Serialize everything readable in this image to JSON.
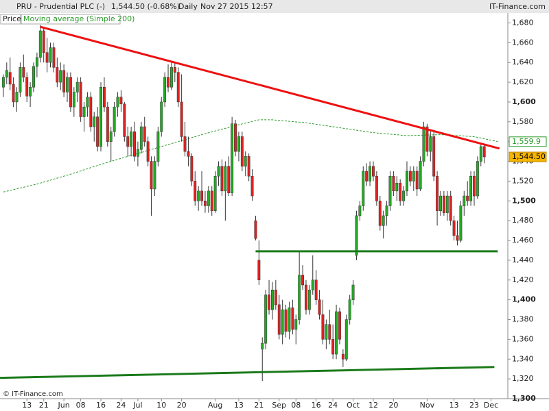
{
  "chart_data": {
    "type": "candlestick",
    "header": {
      "title": "PRU - Prudential PLC (-)",
      "quote": "1,544.50 (-0.68%)",
      "period": "Daily",
      "timestamp": "Nov 27 2015 12:57",
      "source": "IT-Finance.com"
    },
    "legend": [
      "Price",
      "Moving average (Simple 200)"
    ],
    "footer": "© IT-Finance.com",
    "xlim": [
      -1,
      150
    ],
    "ylim": [
      1300,
      1690
    ],
    "yticks": [
      {
        "value": 1300,
        "label": "1,300"
      },
      {
        "value": 1320,
        "label": "1,320"
      },
      {
        "value": 1340,
        "label": "1,340"
      },
      {
        "value": 1360,
        "label": "1,360"
      },
      {
        "value": 1380,
        "label": "1,380"
      },
      {
        "value": 1400,
        "label": "1,400"
      },
      {
        "value": 1420,
        "label": "1,420"
      },
      {
        "value": 1440,
        "label": "1,440"
      },
      {
        "value": 1460,
        "label": "1,460"
      },
      {
        "value": 1480,
        "label": "1,480"
      },
      {
        "value": 1500,
        "label": "1,500"
      },
      {
        "value": 1520,
        "label": "1,520"
      },
      {
        "value": 1540,
        "label": "1,540"
      },
      {
        "value": 1560,
        "label": "1,560"
      },
      {
        "value": 1580,
        "label": "1,580"
      },
      {
        "value": 1600,
        "label": "1,600"
      },
      {
        "value": 1620,
        "label": "1,620"
      },
      {
        "value": 1640,
        "label": "1,640"
      },
      {
        "value": 1660,
        "label": "1,660"
      },
      {
        "value": 1680,
        "label": "1,680"
      }
    ],
    "bold_ticks": [
      1300,
      1400,
      1500,
      1600
    ],
    "xticks": [
      {
        "value": 7,
        "label": "13"
      },
      {
        "value": 12,
        "label": "21"
      },
      {
        "value": 18,
        "label": "Jun"
      },
      {
        "value": 23,
        "label": "08"
      },
      {
        "value": 29,
        "label": "16"
      },
      {
        "value": 35,
        "label": "24"
      },
      {
        "value": 40,
        "label": "Jul"
      },
      {
        "value": 47,
        "label": "10"
      },
      {
        "value": 53,
        "label": "20"
      },
      {
        "value": 63,
        "label": "Aug"
      },
      {
        "value": 70,
        "label": "13"
      },
      {
        "value": 76,
        "label": "21"
      },
      {
        "value": 82,
        "label": "Sep"
      },
      {
        "value": 87,
        "label": "08"
      },
      {
        "value": 93,
        "label": "16"
      },
      {
        "value": 98,
        "label": "24"
      },
      {
        "value": 104,
        "label": "Oct"
      },
      {
        "value": 110,
        "label": "12"
      },
      {
        "value": 116,
        "label": "20"
      },
      {
        "value": 126,
        "label": "Nov"
      },
      {
        "value": 134,
        "label": "13"
      },
      {
        "value": 140,
        "label": "23"
      },
      {
        "value": 145,
        "label": "Dec"
      }
    ],
    "up_color": "#22aa22",
    "down_color": "#dd2222",
    "ohlc": [
      [
        1615,
        1628,
        1605,
        1625
      ],
      [
        1625,
        1640,
        1618,
        1632
      ],
      [
        1630,
        1645,
        1612,
        1618
      ],
      [
        1618,
        1625,
        1595,
        1600
      ],
      [
        1600,
        1615,
        1590,
        1610
      ],
      [
        1610,
        1640,
        1605,
        1635
      ],
      [
        1635,
        1648,
        1620,
        1625
      ],
      [
        1625,
        1630,
        1600,
        1606
      ],
      [
        1606,
        1620,
        1595,
        1615
      ],
      [
        1615,
        1640,
        1610,
        1636
      ],
      [
        1636,
        1650,
        1625,
        1645
      ],
      [
        1645,
        1678,
        1640,
        1672
      ],
      [
        1672,
        1676,
        1640,
        1650
      ],
      [
        1650,
        1665,
        1630,
        1640
      ],
      [
        1640,
        1660,
        1635,
        1655
      ],
      [
        1655,
        1660,
        1630,
        1635
      ],
      [
        1635,
        1645,
        1615,
        1620
      ],
      [
        1620,
        1640,
        1612,
        1632
      ],
      [
        1632,
        1638,
        1605,
        1610
      ],
      [
        1610,
        1630,
        1600,
        1625
      ],
      [
        1625,
        1630,
        1590,
        1595
      ],
      [
        1595,
        1615,
        1585,
        1610
      ],
      [
        1610,
        1625,
        1600,
        1620
      ],
      [
        1620,
        1625,
        1580,
        1585
      ],
      [
        1585,
        1600,
        1570,
        1595
      ],
      [
        1595,
        1610,
        1585,
        1605
      ],
      [
        1605,
        1610,
        1570,
        1575
      ],
      [
        1575,
        1590,
        1560,
        1585
      ],
      [
        1585,
        1595,
        1550,
        1555
      ],
      [
        1555,
        1620,
        1550,
        1615
      ],
      [
        1615,
        1625,
        1590,
        1595
      ],
      [
        1595,
        1600,
        1555,
        1560
      ],
      [
        1560,
        1575,
        1540,
        1570
      ],
      [
        1570,
        1600,
        1565,
        1595
      ],
      [
        1595,
        1610,
        1585,
        1605
      ],
      [
        1605,
        1612,
        1590,
        1598
      ],
      [
        1598,
        1600,
        1560,
        1565
      ],
      [
        1565,
        1575,
        1545,
        1555
      ],
      [
        1555,
        1575,
        1545,
        1570
      ],
      [
        1570,
        1580,
        1540,
        1545
      ],
      [
        1545,
        1560,
        1535,
        1552
      ],
      [
        1552,
        1580,
        1548,
        1575
      ],
      [
        1575,
        1585,
        1555,
        1560
      ],
      [
        1560,
        1565,
        1535,
        1540
      ],
      [
        1540,
        1545,
        1485,
        1512
      ],
      [
        1512,
        1545,
        1505,
        1540
      ],
      [
        1540,
        1575,
        1535,
        1570
      ],
      [
        1570,
        1605,
        1565,
        1600
      ],
      [
        1600,
        1630,
        1595,
        1625
      ],
      [
        1625,
        1638,
        1610,
        1615
      ],
      [
        1615,
        1640,
        1612,
        1635
      ],
      [
        1635,
        1640,
        1620,
        1630
      ],
      [
        1630,
        1635,
        1595,
        1600
      ],
      [
        1600,
        1628,
        1560,
        1565
      ],
      [
        1565,
        1580,
        1545,
        1550
      ],
      [
        1550,
        1565,
        1535,
        1545
      ],
      [
        1545,
        1548,
        1515,
        1520
      ],
      [
        1520,
        1530,
        1495,
        1500
      ],
      [
        1500,
        1515,
        1490,
        1510
      ],
      [
        1510,
        1530,
        1495,
        1500
      ],
      [
        1500,
        1510,
        1488,
        1495
      ],
      [
        1495,
        1515,
        1488,
        1510
      ],
      [
        1510,
        1515,
        1485,
        1490
      ],
      [
        1490,
        1530,
        1488,
        1525
      ],
      [
        1525,
        1540,
        1515,
        1535
      ],
      [
        1535,
        1542,
        1505,
        1510
      ],
      [
        1510,
        1540,
        1480,
        1535
      ],
      [
        1535,
        1545,
        1505,
        1508
      ],
      [
        1508,
        1585,
        1505,
        1578
      ],
      [
        1578,
        1582,
        1545,
        1550
      ],
      [
        1550,
        1570,
        1540,
        1565
      ],
      [
        1565,
        1570,
        1530,
        1535
      ],
      [
        1535,
        1550,
        1525,
        1545
      ],
      [
        1545,
        1548,
        1520,
        1525
      ],
      [
        1525,
        1532,
        1500,
        1505
      ],
      [
        1480,
        1485,
        1460,
        1462
      ],
      [
        1440,
        1460,
        1415,
        1420
      ],
      [
        1350,
        1362,
        1318,
        1356
      ],
      [
        1356,
        1410,
        1350,
        1405
      ],
      [
        1405,
        1420,
        1385,
        1390
      ],
      [
        1390,
        1418,
        1380,
        1410
      ],
      [
        1410,
        1420,
        1390,
        1395
      ],
      [
        1395,
        1405,
        1360,
        1365
      ],
      [
        1365,
        1400,
        1355,
        1390
      ],
      [
        1390,
        1395,
        1362,
        1368
      ],
      [
        1368,
        1398,
        1360,
        1392
      ],
      [
        1392,
        1400,
        1365,
        1370
      ],
      [
        1370,
        1385,
        1355,
        1380
      ],
      [
        1380,
        1450,
        1375,
        1425
      ],
      [
        1425,
        1435,
        1410,
        1415
      ],
      [
        1415,
        1420,
        1385,
        1390
      ],
      [
        1390,
        1415,
        1385,
        1410
      ],
      [
        1410,
        1445,
        1405,
        1420
      ],
      [
        1420,
        1430,
        1395,
        1400
      ],
      [
        1400,
        1410,
        1380,
        1385
      ],
      [
        1385,
        1400,
        1355,
        1360
      ],
      [
        1360,
        1380,
        1350,
        1375
      ],
      [
        1375,
        1390,
        1355,
        1360
      ],
      [
        1360,
        1375,
        1340,
        1345
      ],
      [
        1345,
        1395,
        1340,
        1388
      ],
      [
        1388,
        1392,
        1355,
        1360
      ],
      [
        1345,
        1350,
        1332,
        1340
      ],
      [
        1340,
        1385,
        1338,
        1380
      ],
      [
        1380,
        1405,
        1375,
        1400
      ],
      [
        1400,
        1420,
        1395,
        1415
      ],
      [
        1445,
        1490,
        1440,
        1485
      ],
      [
        1485,
        1500,
        1480,
        1495
      ],
      [
        1495,
        1535,
        1490,
        1530
      ],
      [
        1530,
        1538,
        1515,
        1520
      ],
      [
        1520,
        1540,
        1515,
        1535
      ],
      [
        1535,
        1540,
        1520,
        1525
      ],
      [
        1525,
        1530,
        1495,
        1500
      ],
      [
        1500,
        1505,
        1470,
        1475
      ],
      [
        1475,
        1490,
        1462,
        1485
      ],
      [
        1485,
        1500,
        1475,
        1495
      ],
      [
        1495,
        1530,
        1490,
        1525
      ],
      [
        1525,
        1530,
        1505,
        1510
      ],
      [
        1510,
        1525,
        1500,
        1518
      ],
      [
        1518,
        1522,
        1495,
        1500
      ],
      [
        1500,
        1515,
        1495,
        1510
      ],
      [
        1510,
        1540,
        1505,
        1530
      ],
      [
        1530,
        1535,
        1515,
        1520
      ],
      [
        1520,
        1535,
        1510,
        1530
      ],
      [
        1530,
        1535,
        1505,
        1512
      ],
      [
        1512,
        1545,
        1510,
        1540
      ],
      [
        1540,
        1580,
        1535,
        1575
      ],
      [
        1575,
        1578,
        1545,
        1550
      ],
      [
        1550,
        1572,
        1540,
        1565
      ],
      [
        1565,
        1570,
        1520,
        1525
      ],
      [
        1525,
        1530,
        1475,
        1490
      ],
      [
        1490,
        1510,
        1485,
        1505
      ],
      [
        1505,
        1510,
        1485,
        1488
      ],
      [
        1488,
        1510,
        1480,
        1505
      ],
      [
        1505,
        1510,
        1475,
        1480
      ],
      [
        1480,
        1485,
        1460,
        1465
      ],
      [
        1465,
        1480,
        1455,
        1460
      ],
      [
        1460,
        1500,
        1458,
        1495
      ],
      [
        1495,
        1510,
        1485,
        1505
      ],
      [
        1505,
        1520,
        1495,
        1500
      ],
      [
        1500,
        1530,
        1495,
        1525
      ],
      [
        1525,
        1530,
        1495,
        1505
      ],
      [
        1505,
        1545,
        1502,
        1540
      ],
      [
        1540,
        1558,
        1535,
        1555
      ],
      [
        1555,
        1558,
        1538,
        1544.5
      ]
    ],
    "moving_average": {
      "color": "#2a9a2a",
      "x": [
        0,
        10,
        20,
        30,
        40,
        50,
        60,
        70,
        76,
        80,
        90,
        100,
        110,
        120,
        130,
        140,
        147
      ],
      "values": [
        1509,
        1517,
        1527,
        1538,
        1548,
        1558,
        1568,
        1577,
        1582,
        1582,
        1579,
        1574,
        1569,
        1566,
        1567,
        1565,
        1560
      ]
    },
    "trend_lines": [
      {
        "color": "#ee1111",
        "x": [
          11,
          147.5
        ],
        "values": [
          1676,
          1553
        ]
      },
      {
        "color": "#1a7a1a",
        "x": [
          75,
          147
        ],
        "values": [
          1449,
          1449
        ]
      },
      {
        "color": "#1a7a1a",
        "x": [
          -1,
          146
        ],
        "values": [
          1321,
          1332
        ]
      }
    ],
    "last_labels": [
      {
        "value": 1559.9,
        "label": "1,559.9"
      },
      {
        "value": 1544.5,
        "label": "1,544.50"
      }
    ]
  }
}
